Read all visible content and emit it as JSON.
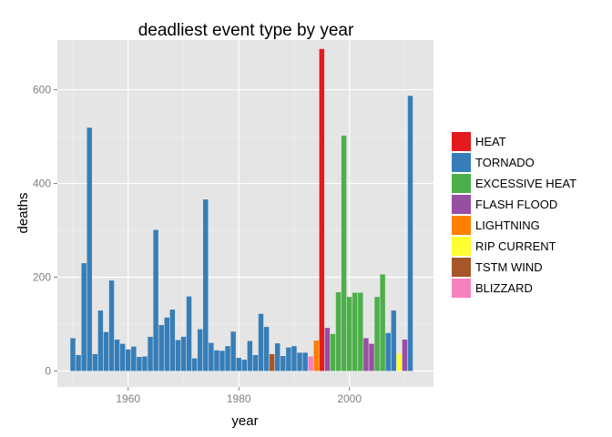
{
  "chart_data": {
    "type": "bar",
    "title": "deadliest event type by year",
    "xlabel": "year",
    "ylabel": "deaths",
    "xlim": [
      1947.2,
      2015.2
    ],
    "ylim": [
      -34,
      706
    ],
    "x_ticks": [
      1960,
      1980,
      2000
    ],
    "y_ticks": [
      0,
      200,
      400,
      600
    ],
    "grid": true,
    "legend_position": "right",
    "categories": [
      {
        "name": "HEAT",
        "color": "#E41A1C"
      },
      {
        "name": "TORNADO",
        "color": "#377EB8"
      },
      {
        "name": "EXCESSIVE HEAT",
        "color": "#4DAF4A"
      },
      {
        "name": "FLASH FLOOD",
        "color": "#984EA3"
      },
      {
        "name": "LIGHTNING",
        "color": "#FF7F00"
      },
      {
        "name": "RIP CURRENT",
        "color": "#FFFF33"
      },
      {
        "name": "TSTM WIND",
        "color": "#A65628"
      },
      {
        "name": "BLIZZARD",
        "color": "#F781BF"
      }
    ],
    "data": [
      {
        "year": 1950,
        "deaths": 70,
        "type": "TORNADO"
      },
      {
        "year": 1951,
        "deaths": 34,
        "type": "TORNADO"
      },
      {
        "year": 1952,
        "deaths": 230,
        "type": "TORNADO"
      },
      {
        "year": 1953,
        "deaths": 519,
        "type": "TORNADO"
      },
      {
        "year": 1954,
        "deaths": 36,
        "type": "TORNADO"
      },
      {
        "year": 1955,
        "deaths": 129,
        "type": "TORNADO"
      },
      {
        "year": 1956,
        "deaths": 83,
        "type": "TORNADO"
      },
      {
        "year": 1957,
        "deaths": 193,
        "type": "TORNADO"
      },
      {
        "year": 1958,
        "deaths": 67,
        "type": "TORNADO"
      },
      {
        "year": 1959,
        "deaths": 58,
        "type": "TORNADO"
      },
      {
        "year": 1960,
        "deaths": 46,
        "type": "TORNADO"
      },
      {
        "year": 1961,
        "deaths": 52,
        "type": "TORNADO"
      },
      {
        "year": 1962,
        "deaths": 30,
        "type": "TORNADO"
      },
      {
        "year": 1963,
        "deaths": 31,
        "type": "TORNADO"
      },
      {
        "year": 1964,
        "deaths": 73,
        "type": "TORNADO"
      },
      {
        "year": 1965,
        "deaths": 301,
        "type": "TORNADO"
      },
      {
        "year": 1966,
        "deaths": 98,
        "type": "TORNADO"
      },
      {
        "year": 1967,
        "deaths": 114,
        "type": "TORNADO"
      },
      {
        "year": 1968,
        "deaths": 131,
        "type": "TORNADO"
      },
      {
        "year": 1969,
        "deaths": 66,
        "type": "TORNADO"
      },
      {
        "year": 1970,
        "deaths": 73,
        "type": "TORNADO"
      },
      {
        "year": 1971,
        "deaths": 159,
        "type": "TORNADO"
      },
      {
        "year": 1972,
        "deaths": 27,
        "type": "TORNADO"
      },
      {
        "year": 1973,
        "deaths": 89,
        "type": "TORNADO"
      },
      {
        "year": 1974,
        "deaths": 366,
        "type": "TORNADO"
      },
      {
        "year": 1975,
        "deaths": 60,
        "type": "TORNADO"
      },
      {
        "year": 1976,
        "deaths": 44,
        "type": "TORNADO"
      },
      {
        "year": 1977,
        "deaths": 43,
        "type": "TORNADO"
      },
      {
        "year": 1978,
        "deaths": 53,
        "type": "TORNADO"
      },
      {
        "year": 1979,
        "deaths": 84,
        "type": "TORNADO"
      },
      {
        "year": 1980,
        "deaths": 28,
        "type": "TORNADO"
      },
      {
        "year": 1981,
        "deaths": 24,
        "type": "TORNADO"
      },
      {
        "year": 1982,
        "deaths": 64,
        "type": "TORNADO"
      },
      {
        "year": 1983,
        "deaths": 34,
        "type": "TORNADO"
      },
      {
        "year": 1984,
        "deaths": 122,
        "type": "TORNADO"
      },
      {
        "year": 1985,
        "deaths": 94,
        "type": "TORNADO"
      },
      {
        "year": 1986,
        "deaths": 36,
        "type": "TSTM WIND"
      },
      {
        "year": 1987,
        "deaths": 59,
        "type": "TORNADO"
      },
      {
        "year": 1988,
        "deaths": 32,
        "type": "TORNADO"
      },
      {
        "year": 1989,
        "deaths": 50,
        "type": "TORNADO"
      },
      {
        "year": 1990,
        "deaths": 53,
        "type": "TORNADO"
      },
      {
        "year": 1991,
        "deaths": 39,
        "type": "TORNADO"
      },
      {
        "year": 1992,
        "deaths": 39,
        "type": "TORNADO"
      },
      {
        "year": 1993,
        "deaths": 31,
        "type": "BLIZZARD"
      },
      {
        "year": 1994,
        "deaths": 65,
        "type": "LIGHTNING"
      },
      {
        "year": 1995,
        "deaths": 687,
        "type": "HEAT"
      },
      {
        "year": 1996,
        "deaths": 92,
        "type": "FLASH FLOOD"
      },
      {
        "year": 1997,
        "deaths": 79,
        "type": "EXCESSIVE HEAT"
      },
      {
        "year": 1998,
        "deaths": 168,
        "type": "EXCESSIVE HEAT"
      },
      {
        "year": 1999,
        "deaths": 502,
        "type": "EXCESSIVE HEAT"
      },
      {
        "year": 2000,
        "deaths": 158,
        "type": "EXCESSIVE HEAT"
      },
      {
        "year": 2001,
        "deaths": 167,
        "type": "EXCESSIVE HEAT"
      },
      {
        "year": 2002,
        "deaths": 167,
        "type": "EXCESSIVE HEAT"
      },
      {
        "year": 2003,
        "deaths": 70,
        "type": "FLASH FLOOD"
      },
      {
        "year": 2004,
        "deaths": 58,
        "type": "FLASH FLOOD"
      },
      {
        "year": 2005,
        "deaths": 158,
        "type": "EXCESSIVE HEAT"
      },
      {
        "year": 2006,
        "deaths": 206,
        "type": "EXCESSIVE HEAT"
      },
      {
        "year": 2007,
        "deaths": 81,
        "type": "TORNADO"
      },
      {
        "year": 2008,
        "deaths": 129,
        "type": "TORNADO"
      },
      {
        "year": 2009,
        "deaths": 37,
        "type": "RIP CURRENT"
      },
      {
        "year": 2010,
        "deaths": 67,
        "type": "FLASH FLOOD"
      },
      {
        "year": 2011,
        "deaths": 587,
        "type": "TORNADO"
      }
    ]
  }
}
